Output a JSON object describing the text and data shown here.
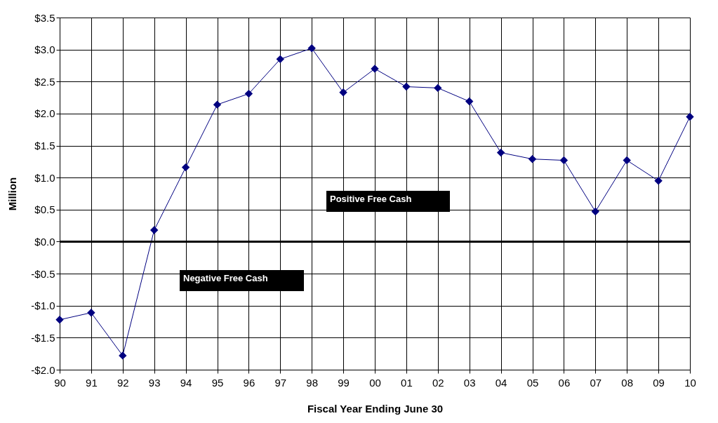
{
  "chart_data": {
    "type": "line",
    "categories": [
      "90",
      "91",
      "92",
      "93",
      "94",
      "95",
      "96",
      "97",
      "98",
      "99",
      "00",
      "01",
      "02",
      "03",
      "04",
      "05",
      "06",
      "07",
      "08",
      "09",
      "10"
    ],
    "series": [
      {
        "color": "#000080",
        "values": [
          -1.22,
          -1.11,
          -1.78,
          0.18,
          1.16,
          2.14,
          2.31,
          2.85,
          3.02,
          2.33,
          2.7,
          2.42,
          2.4,
          2.19,
          1.39,
          1.29,
          1.27,
          0.47,
          1.27,
          0.95,
          1.95
        ]
      }
    ],
    "xlabel": "Fiscal Year Ending June 30",
    "ylabel": "Million",
    "ylim": [
      -2.0,
      3.5
    ],
    "yticks": [
      {
        "value": -2.0,
        "label": "-$2.0"
      },
      {
        "value": -1.5,
        "label": "-$1.5"
      },
      {
        "value": -1.0,
        "label": "-$1.0"
      },
      {
        "value": -0.5,
        "label": "-$0.5"
      },
      {
        "value": 0.0,
        "label": "$0.0"
      },
      {
        "value": 0.5,
        "label": "$0.5"
      },
      {
        "value": 1.0,
        "label": "$1.0"
      },
      {
        "value": 1.5,
        "label": "$1.5"
      },
      {
        "value": 2.0,
        "label": "$2.0"
      },
      {
        "value": 2.5,
        "label": "$2.5"
      },
      {
        "value": 3.0,
        "label": "$3.0"
      },
      {
        "value": 3.5,
        "label": "$3.5"
      }
    ],
    "ref_lines": [
      {
        "axis": "y",
        "value": 0.0,
        "color": "#000000"
      }
    ],
    "annotations": [
      "Positive Free Cash",
      "Negative Free Cash"
    ],
    "grid": true,
    "marker": "diamond",
    "line_style": "solid"
  }
}
